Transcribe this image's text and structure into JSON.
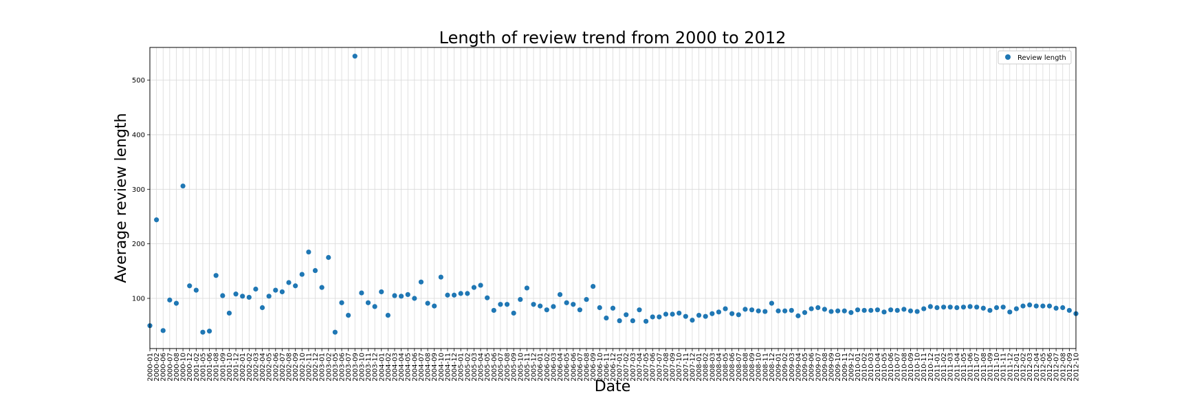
{
  "chart_data": {
    "type": "scatter",
    "title": "Length of review trend from 2000 to 2012",
    "xlabel": "Date",
    "ylabel": "Average review length",
    "ylim": [
      8,
      560
    ],
    "yticks": [
      100,
      200,
      300,
      400,
      500
    ],
    "grid": true,
    "legend_position": "top-right",
    "marker_color": "#1f77b4",
    "x": [
      "2000-01",
      "2000-02",
      "2000-06",
      "2000-07",
      "2000-08",
      "2000-10",
      "2000-12",
      "2001-02",
      "2001-05",
      "2001-06",
      "2001-08",
      "2001-09",
      "2001-10",
      "2001-12",
      "2002-01",
      "2002-02",
      "2002-03",
      "2002-04",
      "2002-05",
      "2002-06",
      "2002-07",
      "2002-08",
      "2002-09",
      "2002-10",
      "2002-11",
      "2002-12",
      "2003-01",
      "2003-02",
      "2003-05",
      "2003-06",
      "2003-07",
      "2003-09",
      "2003-10",
      "2003-11",
      "2003-12",
      "2004-01",
      "2004-02",
      "2004-03",
      "2004-04",
      "2004-05",
      "2004-06",
      "2004-07",
      "2004-08",
      "2004-09",
      "2004-10",
      "2004-11",
      "2004-12",
      "2005-01",
      "2005-02",
      "2005-03",
      "2005-04",
      "2005-05",
      "2005-06",
      "2005-07",
      "2005-08",
      "2005-09",
      "2005-10",
      "2005-11",
      "2005-12",
      "2006-01",
      "2006-02",
      "2006-03",
      "2006-04",
      "2006-05",
      "2006-06",
      "2006-07",
      "2006-08",
      "2006-09",
      "2006-10",
      "2006-11",
      "2006-12",
      "2007-01",
      "2007-02",
      "2007-03",
      "2007-04",
      "2007-05",
      "2007-06",
      "2007-07",
      "2007-08",
      "2007-09",
      "2007-10",
      "2007-11",
      "2007-12",
      "2008-01",
      "2008-02",
      "2008-03",
      "2008-04",
      "2008-05",
      "2008-06",
      "2008-07",
      "2008-08",
      "2008-09",
      "2008-10",
      "2008-11",
      "2008-12",
      "2009-01",
      "2009-02",
      "2009-03",
      "2009-04",
      "2009-05",
      "2009-06",
      "2009-07",
      "2009-08",
      "2009-09",
      "2009-10",
      "2009-11",
      "2009-12",
      "2010-01",
      "2010-02",
      "2010-03",
      "2010-04",
      "2010-05",
      "2010-06",
      "2010-07",
      "2010-08",
      "2010-09",
      "2010-10",
      "2010-11",
      "2010-12",
      "2011-01",
      "2011-02",
      "2011-03",
      "2011-04",
      "2011-05",
      "2011-06",
      "2011-07",
      "2011-08",
      "2011-09",
      "2011-10",
      "2011-11",
      "2011-12",
      "2012-01",
      "2012-02",
      "2012-03",
      "2012-04",
      "2012-05",
      "2012-06",
      "2012-07",
      "2012-08",
      "2012-09",
      "2012-10"
    ],
    "series": [
      {
        "name": "Review length",
        "values": [
          50,
          244,
          41,
          97,
          91,
          306,
          123,
          115,
          38,
          40,
          142,
          105,
          73,
          108,
          104,
          102,
          117,
          83,
          104,
          115,
          112,
          129,
          123,
          144,
          185,
          151,
          120,
          175,
          38,
          92,
          69,
          544,
          110,
          92,
          85,
          112,
          69,
          105,
          104,
          107,
          100,
          130,
          91,
          86,
          139,
          106,
          106,
          109,
          109,
          120,
          124,
          101,
          78,
          89,
          89,
          73,
          98,
          119,
          89,
          86,
          79,
          85,
          107,
          92,
          89,
          79,
          98,
          122,
          83,
          64,
          82,
          59,
          70,
          59,
          79,
          58,
          66,
          66,
          71,
          71,
          73,
          67,
          60,
          69,
          67,
          72,
          75,
          81,
          72,
          70,
          80,
          79,
          77,
          76,
          91,
          77,
          77,
          78,
          68,
          74,
          81,
          83,
          80,
          76,
          77,
          77,
          74,
          79,
          78,
          78,
          79,
          75,
          79,
          78,
          80,
          77,
          76,
          81,
          85,
          83,
          84,
          84,
          83,
          84,
          85,
          84,
          82,
          78,
          83,
          84,
          75,
          81,
          86,
          88,
          86,
          86,
          86,
          82,
          83,
          78,
          72
        ]
      }
    ]
  }
}
